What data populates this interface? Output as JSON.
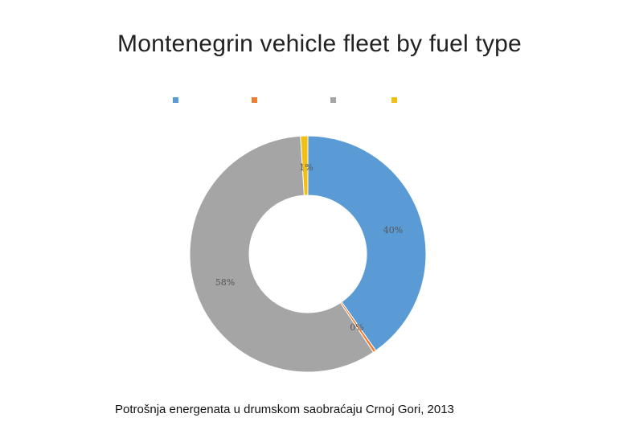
{
  "chart_data": {
    "type": "pie",
    "donut": true,
    "title": "Montenegrin vehicle fleet by fuel type",
    "legend_placement": "top",
    "slices": [
      {
        "label": "1%",
        "value": 1,
        "color": "#f2c012"
      },
      {
        "label": "40%",
        "value": 40,
        "color": "#5b9bd5"
      },
      {
        "label": "0%",
        "value": 0.4,
        "color": "#ed7d31"
      },
      {
        "label": "58%",
        "value": 58,
        "color": "#a5a5a5"
      }
    ],
    "legend_colors": [
      "#5b9bd5",
      "#ed7d31",
      "#a5a5a5",
      "#f2c012"
    ]
  },
  "caption": "Potrošnja energenata u drumskom saobraćaju Crnoj Gori, 2013"
}
